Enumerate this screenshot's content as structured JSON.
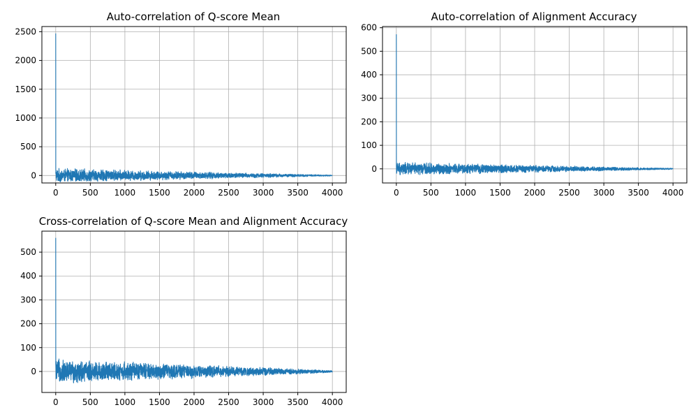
{
  "chart_data": [
    {
      "type": "line",
      "title": "Auto-correlation of Q-score Mean",
      "xlabel": "",
      "ylabel": "",
      "xlim": [
        -200,
        4200
      ],
      "ylim": [
        -130,
        2590
      ],
      "xticks": [
        0,
        500,
        1000,
        1500,
        2000,
        2500,
        3000,
        3500,
        4000
      ],
      "yticks": [
        0,
        500,
        1000,
        1500,
        2000,
        2500
      ],
      "grid": true,
      "series": [
        {
          "color": "#1f77b4",
          "lag_range": [
            0,
            4000
          ],
          "peak": {
            "x": 0,
            "y": 2470
          },
          "noise_amplitude_start": 130,
          "noise_amplitude_end": 10
        }
      ]
    },
    {
      "type": "line",
      "title": "Auto-correlation of Alignment Accuracy",
      "xlabel": "",
      "ylabel": "",
      "xlim": [
        -200,
        4200
      ],
      "ylim": [
        -60,
        605
      ],
      "xticks": [
        0,
        500,
        1000,
        1500,
        2000,
        2500,
        3000,
        3500,
        4000
      ],
      "yticks": [
        0,
        100,
        200,
        300,
        400,
        500,
        600
      ],
      "grid": true,
      "series": [
        {
          "color": "#1f77b4",
          "lag_range": [
            0,
            4000
          ],
          "peak": {
            "x": 0,
            "y": 572
          },
          "noise_amplitude_start": 30,
          "noise_amplitude_end": 3
        }
      ]
    },
    {
      "type": "line",
      "title": "Cross-correlation of Q-score Mean and Alignment Accuracy",
      "xlabel": "",
      "ylabel": "",
      "xlim": [
        -200,
        4200
      ],
      "ylim": [
        -88,
        588
      ],
      "xticks": [
        0,
        500,
        1000,
        1500,
        2000,
        2500,
        3000,
        3500,
        4000
      ],
      "yticks": [
        0,
        100,
        200,
        300,
        400,
        500
      ],
      "grid": true,
      "series": [
        {
          "color": "#1f77b4",
          "lag_range": [
            0,
            4000
          ],
          "peak": {
            "x": 0,
            "y": 560
          },
          "noise_amplitude_start": 55,
          "noise_amplitude_end": 5
        }
      ]
    }
  ]
}
